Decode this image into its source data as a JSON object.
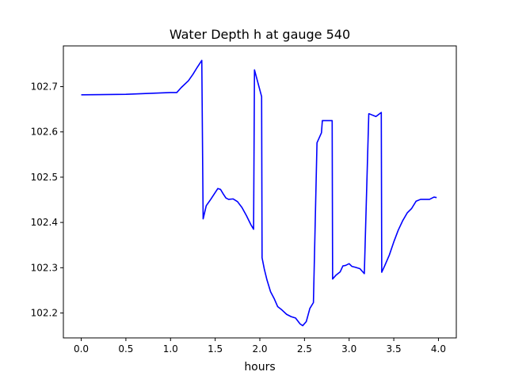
{
  "chart_data": {
    "type": "line",
    "title": "Water Depth h at gauge 540",
    "xlabel": "hours",
    "ylabel": "",
    "xlim": [
      -0.2,
      4.2
    ],
    "ylim": [
      102.145,
      102.79
    ],
    "xticks": [
      0.0,
      0.5,
      1.0,
      1.5,
      2.0,
      2.5,
      3.0,
      3.5,
      4.0
    ],
    "xtick_labels": [
      "0.0",
      "0.5",
      "1.0",
      "1.5",
      "2.0",
      "2.5",
      "3.0",
      "3.5",
      "4.0"
    ],
    "yticks": [
      102.2,
      102.3,
      102.4,
      102.5,
      102.6,
      102.7
    ],
    "ytick_labels": [
      "102.2",
      "102.3",
      "102.4",
      "102.5",
      "102.6",
      "102.7"
    ],
    "grid": false,
    "series": [
      {
        "color": "#0000ff",
        "x": [
          0.0,
          0.5,
          1.0,
          1.07,
          1.12,
          1.2,
          1.25,
          1.3,
          1.35,
          1.365,
          1.37,
          1.4,
          1.45,
          1.5,
          1.53,
          1.56,
          1.59,
          1.62,
          1.65,
          1.7,
          1.75,
          1.8,
          1.85,
          1.9,
          1.93,
          1.94,
          2.02,
          2.025,
          2.05,
          2.08,
          2.12,
          2.16,
          2.2,
          2.24,
          2.3,
          2.35,
          2.4,
          2.45,
          2.48,
          2.52,
          2.56,
          2.6,
          2.64,
          2.69,
          2.7,
          2.81,
          2.815,
          2.85,
          2.9,
          2.93,
          2.96,
          3.0,
          3.03,
          3.07,
          3.12,
          3.17,
          3.22,
          3.225,
          3.3,
          3.36,
          3.365,
          3.4,
          3.45,
          3.5,
          3.55,
          3.6,
          3.65,
          3.7,
          3.75,
          3.8,
          3.85,
          3.9,
          3.95,
          3.98
        ],
        "y": [
          102.682,
          102.683,
          102.687,
          102.687,
          102.698,
          102.713,
          102.727,
          102.743,
          102.758,
          102.408,
          102.412,
          102.437,
          102.451,
          102.466,
          102.475,
          102.473,
          102.463,
          102.454,
          102.451,
          102.452,
          102.446,
          102.433,
          102.415,
          102.395,
          102.385,
          102.737,
          102.678,
          102.322,
          102.297,
          102.273,
          102.247,
          102.232,
          102.214,
          102.208,
          102.197,
          102.192,
          102.189,
          102.176,
          102.172,
          102.181,
          102.21,
          102.223,
          102.576,
          102.598,
          102.625,
          102.625,
          102.275,
          102.283,
          102.291,
          102.304,
          102.305,
          102.309,
          102.303,
          102.301,
          102.298,
          102.287,
          102.64,
          102.64,
          102.634,
          102.643,
          102.29,
          102.305,
          102.328,
          102.357,
          102.383,
          102.404,
          102.421,
          102.431,
          102.447,
          102.451,
          102.451,
          102.451,
          102.456,
          102.455
        ]
      }
    ]
  }
}
